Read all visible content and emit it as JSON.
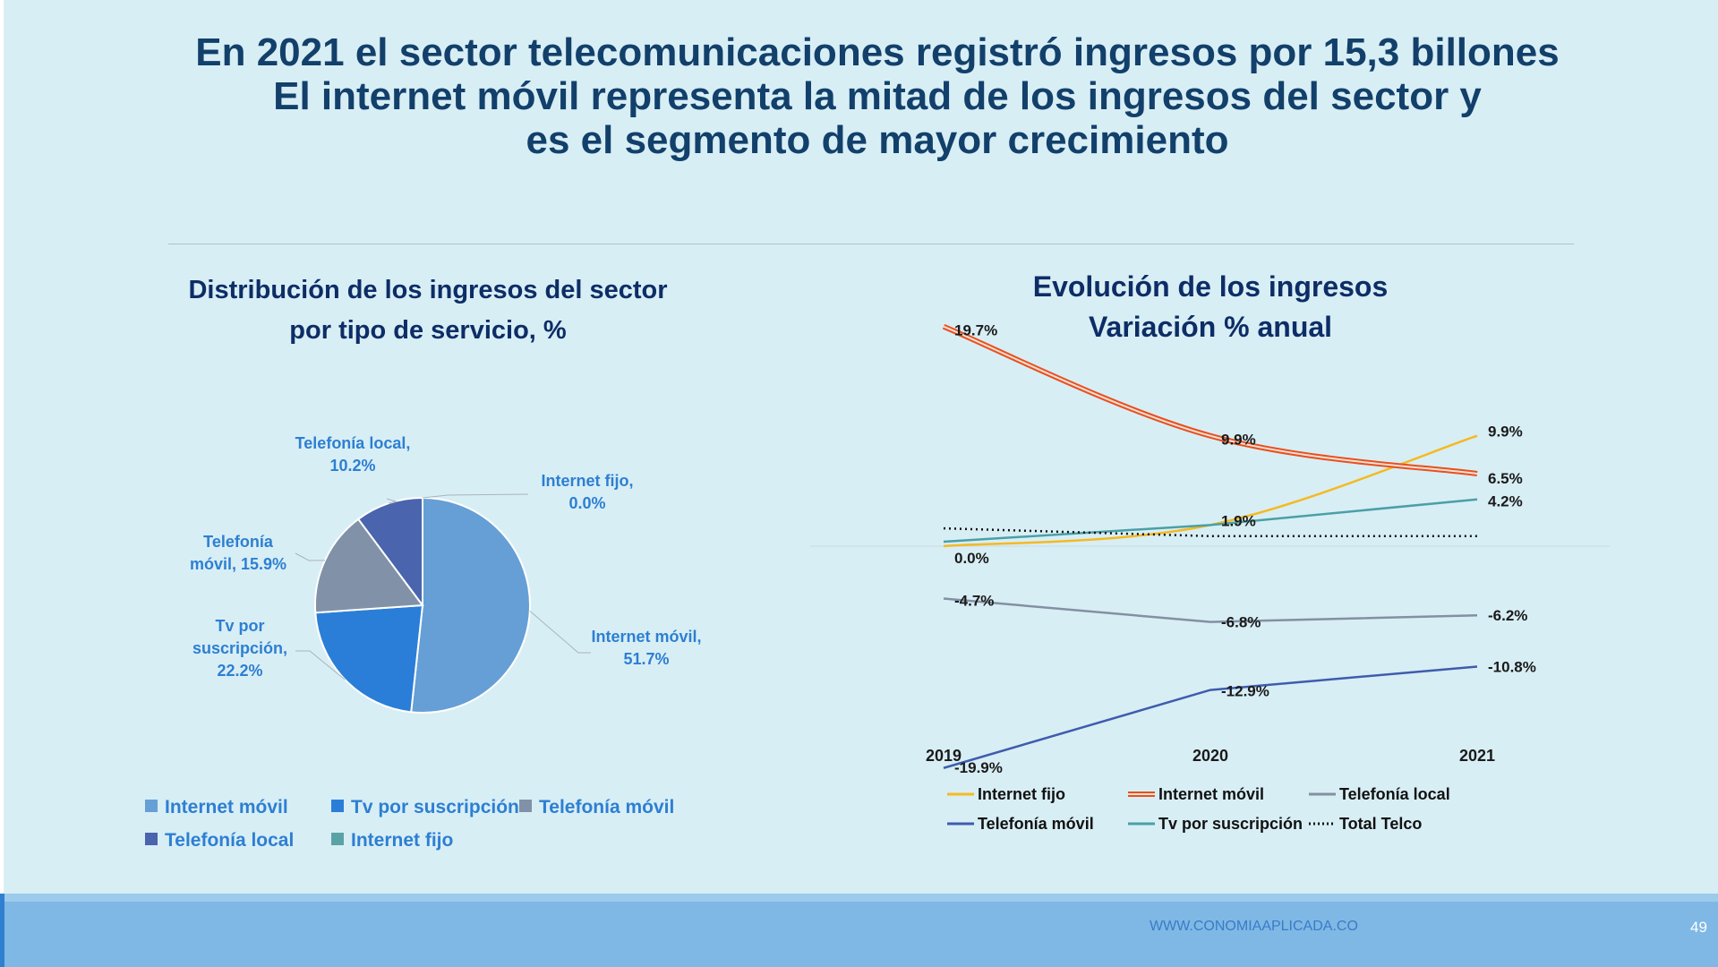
{
  "headline": {
    "line1": "En 2021 el sector telecomunicaciones registró ingresos por 15,3 billones",
    "line2": "El internet móvil representa la mitad de los ingresos del sector y",
    "line3": "es el segmento de mayor crecimiento"
  },
  "footer": {
    "url": "WWW.CONOMIAAPLICADA.CO",
    "page": "49"
  },
  "chart_data": [
    {
      "type": "pie",
      "title_line1": "Distribución de los ingresos del sector",
      "title_line2": "por tipo de servicio, %",
      "slices": [
        {
          "name": "Internet móvil",
          "value": 51.7,
          "color": "#659fd6",
          "label_line1": "Internet móvil,",
          "label_line2": "51.7%"
        },
        {
          "name": "Tv por suscripción",
          "value": 22.2,
          "color": "#2a7ed8",
          "label_line1": "Tv por",
          "label_line2": "suscripción,",
          "label_line3": "22.2%"
        },
        {
          "name": "Telefonía móvil",
          "value": 15.9,
          "color": "#8191a8",
          "label_line1": "Telefonía",
          "label_line2": "móvil, 15.9%"
        },
        {
          "name": "Telefonía local",
          "value": 10.2,
          "color": "#4a64ae",
          "label_line1": "Telefonía local,",
          "label_line2": "10.2%"
        },
        {
          "name": "Internet fijo",
          "value": 0.0,
          "color": "#5aa3a5",
          "label_line1": "Internet fijo,",
          "label_line2": "0.0%"
        }
      ],
      "legend": [
        "Internet móvil",
        "Tv por suscripción",
        "Telefonía móvil",
        "Telefonía local",
        "Internet fijo"
      ]
    },
    {
      "type": "line",
      "title_line1": "Evolución de los ingresos",
      "title_line2": "Variación % anual",
      "x": [
        "2019",
        "2020",
        "2021"
      ],
      "series": [
        {
          "name": "Internet fijo",
          "color": "#f5b921",
          "values": [
            0.0,
            1.9,
            9.9
          ],
          "labels": [
            "0.0%",
            "1.9%",
            "9.9%"
          ]
        },
        {
          "name": "Internet móvil",
          "color": "#e8501e",
          "double": true,
          "values": [
            19.7,
            9.9,
            6.5
          ],
          "labels": [
            "19.7%",
            "9.9%",
            "6.5%"
          ]
        },
        {
          "name": "Telefonía local",
          "color": "#8390a3",
          "values": [
            -4.7,
            -6.8,
            -6.2
          ],
          "labels": [
            "-4.7%",
            "-6.8%",
            "-6.2%"
          ]
        },
        {
          "name": "Telefonía móvil",
          "color": "#3f5cad",
          "values": [
            -19.9,
            -12.9,
            -10.8
          ],
          "labels": [
            "-19.9%",
            "-12.9%",
            "-10.8%"
          ]
        },
        {
          "name": "Tv por suscripción",
          "color": "#4aa0a6",
          "values": [
            0.4,
            1.9,
            4.2
          ],
          "labels": [
            "",
            "",
            "4.2%"
          ]
        },
        {
          "name": "Total Telco",
          "color": "#111111",
          "dotted": true,
          "values": [
            1.6,
            0.9,
            0.9
          ],
          "labels": [
            "",
            "",
            ""
          ]
        }
      ],
      "ylim": [
        -25,
        22
      ]
    }
  ]
}
